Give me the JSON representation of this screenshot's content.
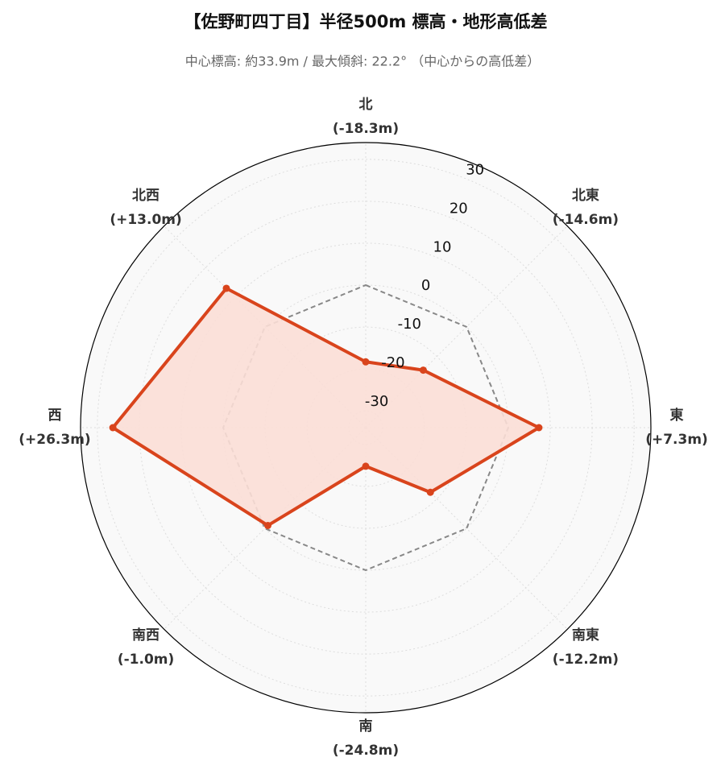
{
  "chart_data": {
    "type": "radar",
    "title": "【佐野町四丁目】半径500m 標高・地形高低差",
    "subtitle": "中心標高: 約33.9m / 最大傾斜: 22.2° （中心からの高低差）",
    "categories": [
      "北",
      "北東",
      "東",
      "南東",
      "南",
      "南西",
      "西",
      "北西"
    ],
    "values": [
      -18.3,
      -14.6,
      7.3,
      -12.2,
      -24.8,
      -1.0,
      26.3,
      13.0
    ],
    "value_labels": [
      "(-18.3m)",
      "(-14.6m)",
      "(+7.3m)",
      "(-12.2m)",
      "(-24.8m)",
      "(-1.0m)",
      "(+26.3m)",
      "(+13.0m)"
    ],
    "color": "#d9441c",
    "fill_color": "#fbded6",
    "ylim": [
      -34,
      34
    ],
    "yticks": [
      -30,
      -20,
      -10,
      0,
      10,
      20,
      30
    ],
    "grid": true,
    "reference_line": {
      "value": 0,
      "color": "#888888"
    }
  }
}
